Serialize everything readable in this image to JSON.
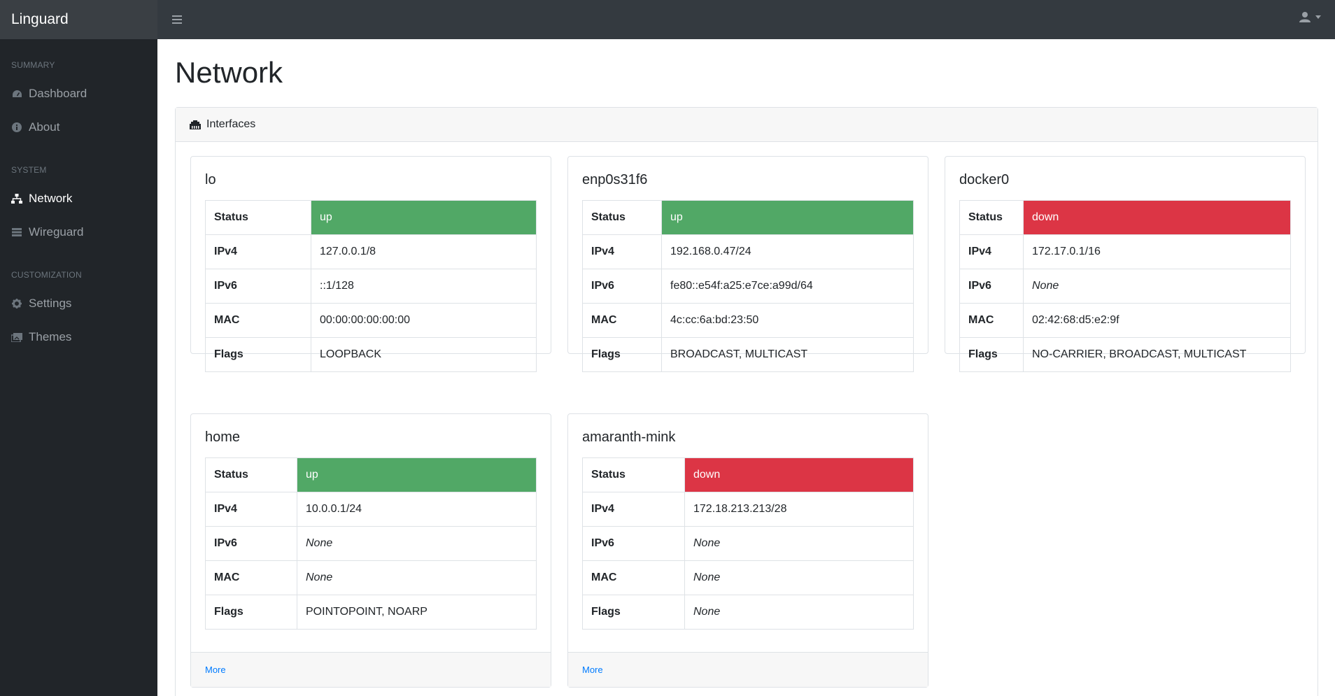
{
  "app": {
    "brand": "Linguard"
  },
  "topnav": {
    "toggle_icon": "hamburger-icon",
    "user_icon": "user-icon"
  },
  "sidebar": {
    "sections": [
      {
        "heading": "SUMMARY",
        "items": [
          {
            "label": "Dashboard",
            "icon": "dashboard-icon",
            "active": false
          },
          {
            "label": "About",
            "icon": "info-icon",
            "active": false
          }
        ]
      },
      {
        "heading": "SYSTEM",
        "items": [
          {
            "label": "Network",
            "icon": "network-icon",
            "active": true
          },
          {
            "label": "Wireguard",
            "icon": "list-icon",
            "active": false
          }
        ]
      },
      {
        "heading": "CUSTOMIZATION",
        "items": [
          {
            "label": "Settings",
            "icon": "gear-icon",
            "active": false
          },
          {
            "label": "Themes",
            "icon": "themes-icon",
            "active": false
          }
        ]
      }
    ]
  },
  "main": {
    "title": "Network",
    "panel_title": "Interfaces",
    "panel_icon": "ethernet-icon",
    "row_labels": {
      "status": "Status",
      "ipv4": "IPv4",
      "ipv6": "IPv6",
      "mac": "MAC",
      "flags": "Flags"
    },
    "more_label": "More",
    "interfaces": [
      {
        "name": "lo",
        "status": "up",
        "ipv4": "127.0.0.1/8",
        "ipv6": "::1/128",
        "mac": "00:00:00:00:00:00",
        "flags": "LOOPBACK"
      },
      {
        "name": "enp0s31f6",
        "status": "up",
        "ipv4": "192.168.0.47/24",
        "ipv6": "fe80::e54f:a25:e7ce:a99d/64",
        "mac": "4c:cc:6a:bd:23:50",
        "flags": "BROADCAST, MULTICAST"
      },
      {
        "name": "docker0",
        "status": "down",
        "ipv4": "172.17.0.1/16",
        "ipv6": "None",
        "mac": "02:42:68:d5:e2:9f",
        "flags": "NO-CARRIER, BROADCAST, MULTICAST"
      },
      {
        "name": "home",
        "status": "up",
        "ipv4": "10.0.0.1/24",
        "ipv6": "None",
        "mac": "None",
        "flags": "POINTOPOINT, NOARP"
      },
      {
        "name": "amaranth-mink",
        "status": "down",
        "ipv4": "172.18.213.213/28",
        "ipv6": "None",
        "mac": "None",
        "flags": "None"
      }
    ]
  },
  "colors": {
    "up": "#51a866",
    "down": "#dc3545",
    "sidebar": "#212529",
    "navbar": "#343a40",
    "link": "#007bff"
  }
}
